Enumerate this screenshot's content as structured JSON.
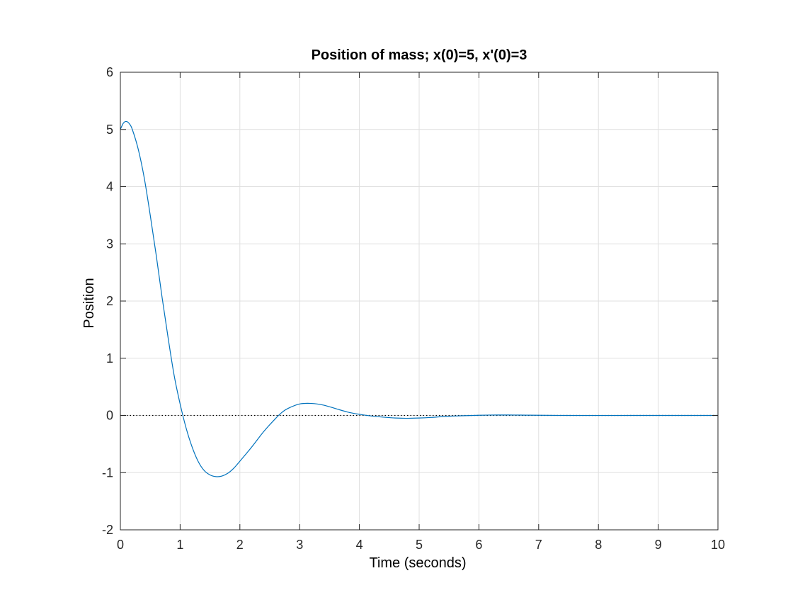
{
  "chart_data": {
    "type": "line",
    "title": "Position of mass; x(0)=5, x'(0)=3",
    "xlabel": "Time (seconds)",
    "ylabel": "Position",
    "xlim": [
      0,
      10
    ],
    "ylim": [
      -2,
      6
    ],
    "xticks": [
      "0",
      "1",
      "2",
      "3",
      "4",
      "5",
      "6",
      "7",
      "8",
      "9",
      "10"
    ],
    "yticks": [
      "6",
      "5",
      "4",
      "3",
      "2",
      "1",
      "0",
      "-1",
      "-2"
    ],
    "grid": true,
    "reference_line": {
      "y": 0,
      "style": "dotted",
      "color": "#000000"
    },
    "series": [
      {
        "color": "#0072bd",
        "x": [
          0,
          0.05,
          0.1,
          0.15,
          0.2,
          0.3,
          0.4,
          0.5,
          0.6,
          0.7,
          0.8,
          0.9,
          1.0,
          1.1,
          1.2,
          1.3,
          1.4,
          1.5,
          1.6,
          1.7,
          1.8,
          1.9,
          2.0,
          2.2,
          2.4,
          2.6,
          2.7,
          2.8,
          3.0,
          3.2,
          3.4,
          3.6,
          3.8,
          4.0,
          4.2,
          4.4,
          4.6,
          4.8,
          5.0,
          5.2,
          5.4,
          5.6,
          5.8,
          6.0,
          6.2,
          6.4,
          6.6,
          6.8,
          7.0,
          7.5,
          8.0,
          8.5,
          9.0,
          9.5,
          10.0
        ],
        "y": [
          5.0,
          5.11,
          5.14,
          5.1,
          5.0,
          4.65,
          4.15,
          3.5,
          2.8,
          2.05,
          1.35,
          0.7,
          0.2,
          -0.22,
          -0.55,
          -0.8,
          -0.96,
          -1.04,
          -1.07,
          -1.06,
          -1.01,
          -0.92,
          -0.8,
          -0.55,
          -0.28,
          -0.05,
          0.05,
          0.12,
          0.2,
          0.21,
          0.18,
          0.12,
          0.06,
          0.02,
          -0.01,
          -0.03,
          -0.045,
          -0.05,
          -0.045,
          -0.035,
          -0.02,
          -0.01,
          -0.003,
          0.003,
          0.007,
          0.008,
          0.007,
          0.005,
          0.003,
          0.0,
          -0.001,
          0.0,
          0.0,
          0.0,
          0.0
        ]
      }
    ]
  }
}
